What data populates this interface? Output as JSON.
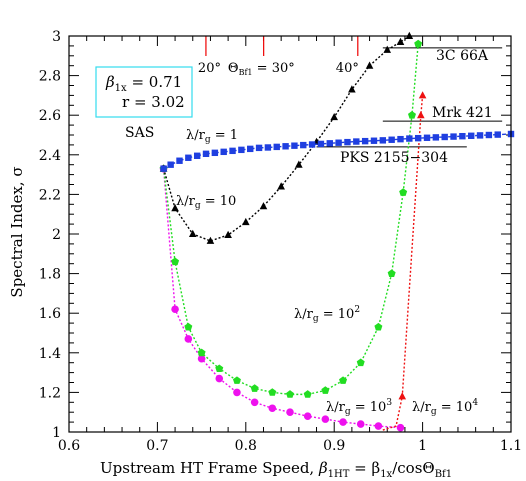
{
  "chart_data": {
    "type": "scatter",
    "xlim": [
      0.6,
      1.1
    ],
    "ylim": [
      1.0,
      3.0
    ],
    "xticks": [
      0.6,
      0.7,
      0.8,
      0.9,
      1.0,
      1.1
    ],
    "xtick_labels": [
      "0.6",
      "0.7",
      "0.8",
      "0.9",
      "1",
      "1.1"
    ],
    "yticks": [
      1.0,
      1.2,
      1.4,
      1.6,
      1.8,
      2.0,
      2.2,
      2.4,
      2.6,
      2.8,
      3.0
    ],
    "ytick_labels": [
      "1",
      "1.2",
      "1.4",
      "1.6",
      "1.8",
      "2",
      "2.2",
      "2.4",
      "2.6",
      "2.8",
      "3"
    ],
    "xlabel_prefix": "Upstream HT Frame Speed, ",
    "xlabel_beta": "β",
    "xlabel_sub1": "1HT",
    "xlabel_mid": " = β",
    "xlabel_sub2": "1x",
    "xlabel_tail": "/cosΘ",
    "xlabel_sub3": "Bf1",
    "ylabel": "Spectral Index, σ",
    "params_box": {
      "beta_line": "β",
      "beta_sub": "1x",
      "beta_val": " = 0.71",
      "r_line": "r = 3.02"
    },
    "sas_label": "SAS",
    "angle_markers": [
      {
        "x": 0.7549,
        "label": "20°"
      },
      {
        "x": 0.8202,
        "label": "30°",
        "prefix": "Θ",
        "sub": "Bf1",
        "eq": " = "
      },
      {
        "x": 0.9267,
        "label": "40°"
      }
    ],
    "sources": [
      {
        "name": "3C 66A",
        "y": 2.94,
        "x_start": 0.955,
        "x_end": 1.09
      },
      {
        "name": "Mrk 421",
        "y": 2.57,
        "x_start": 0.955,
        "x_end": 1.09
      },
      {
        "name": "PKS 2155−304",
        "y": 2.44,
        "x_start": 0.88,
        "x_end": 1.05
      }
    ],
    "series": [
      {
        "name": "λ/r_g = 1",
        "color": "#1f3fe0",
        "marker": "square",
        "label_main": "λ/r",
        "label_sub": "g",
        "label_eq": " = 1",
        "label_sup": "",
        "points": [
          [
            0.707,
            2.33
          ],
          [
            0.715,
            2.35
          ],
          [
            0.725,
            2.37
          ],
          [
            0.735,
            2.385
          ],
          [
            0.745,
            2.395
          ],
          [
            0.755,
            2.405
          ],
          [
            0.765,
            2.41
          ],
          [
            0.775,
            2.415
          ],
          [
            0.785,
            2.42
          ],
          [
            0.795,
            2.425
          ],
          [
            0.805,
            2.43
          ],
          [
            0.815,
            2.435
          ],
          [
            0.825,
            2.437
          ],
          [
            0.835,
            2.44
          ],
          [
            0.845,
            2.443
          ],
          [
            0.855,
            2.446
          ],
          [
            0.865,
            2.449
          ],
          [
            0.875,
            2.452
          ],
          [
            0.885,
            2.455
          ],
          [
            0.895,
            2.458
          ],
          [
            0.905,
            2.461
          ],
          [
            0.915,
            2.464
          ],
          [
            0.925,
            2.467
          ],
          [
            0.935,
            2.469
          ],
          [
            0.945,
            2.471
          ],
          [
            0.955,
            2.473
          ],
          [
            0.965,
            2.476
          ],
          [
            0.975,
            2.479
          ],
          [
            0.985,
            2.482
          ],
          [
            0.995,
            2.484
          ],
          [
            1.005,
            2.486
          ],
          [
            1.015,
            2.488
          ],
          [
            1.025,
            2.49
          ],
          [
            1.035,
            2.492
          ],
          [
            1.045,
            2.494
          ],
          [
            1.055,
            2.496
          ],
          [
            1.065,
            2.498
          ],
          [
            1.075,
            2.5
          ],
          [
            1.085,
            2.502
          ],
          [
            1.1,
            2.505
          ]
        ]
      },
      {
        "name": "λ/r_g = 10",
        "color": "#000000",
        "marker": "triangle",
        "label_main": "λ/r",
        "label_sub": "g",
        "label_eq": " = 10",
        "label_sup": "",
        "points": [
          [
            0.707,
            2.33
          ],
          [
            0.72,
            2.13
          ],
          [
            0.74,
            2.0
          ],
          [
            0.76,
            1.965
          ],
          [
            0.78,
            1.995
          ],
          [
            0.8,
            2.06
          ],
          [
            0.82,
            2.14
          ],
          [
            0.84,
            2.24
          ],
          [
            0.86,
            2.35
          ],
          [
            0.88,
            2.465
          ],
          [
            0.9,
            2.59
          ],
          [
            0.92,
            2.73
          ],
          [
            0.94,
            2.85
          ],
          [
            0.96,
            2.93
          ],
          [
            0.975,
            2.97
          ],
          [
            0.985,
            3.0
          ]
        ]
      },
      {
        "name": "λ/r_g = 10^2",
        "color": "#22dd22",
        "marker": "pentagon",
        "label_main": "λ/r",
        "label_sub": "g",
        "label_eq": " = 10",
        "label_sup": "2",
        "points": [
          [
            0.707,
            2.33
          ],
          [
            0.72,
            1.86
          ],
          [
            0.735,
            1.53
          ],
          [
            0.75,
            1.4
          ],
          [
            0.77,
            1.32
          ],
          [
            0.79,
            1.26
          ],
          [
            0.81,
            1.22
          ],
          [
            0.83,
            1.2
          ],
          [
            0.85,
            1.19
          ],
          [
            0.87,
            1.19
          ],
          [
            0.89,
            1.21
          ],
          [
            0.91,
            1.26
          ],
          [
            0.93,
            1.35
          ],
          [
            0.95,
            1.53
          ],
          [
            0.965,
            1.8
          ],
          [
            0.978,
            2.21
          ],
          [
            0.988,
            2.6
          ],
          [
            0.995,
            2.96
          ]
        ]
      },
      {
        "name": "λ/r_g = 10^3",
        "color": "#ee11ee",
        "marker": "circle",
        "label_main": "λ/r",
        "label_sub": "g",
        "label_eq": " = 10",
        "label_sup": "3",
        "points": [
          [
            0.707,
            2.33
          ],
          [
            0.72,
            1.62
          ],
          [
            0.735,
            1.47
          ],
          [
            0.75,
            1.37
          ],
          [
            0.77,
            1.27
          ],
          [
            0.79,
            1.2
          ],
          [
            0.81,
            1.15
          ],
          [
            0.83,
            1.12
          ],
          [
            0.85,
            1.1
          ],
          [
            0.87,
            1.08
          ],
          [
            0.89,
            1.065
          ],
          [
            0.91,
            1.05
          ],
          [
            0.93,
            1.04
          ],
          [
            0.95,
            1.03
          ],
          [
            0.975,
            1.022
          ]
        ]
      },
      {
        "name": "λ/r_g = 10^4",
        "color": "#ee1111",
        "marker": "triangle",
        "label_main": "λ/r",
        "label_sub": "g",
        "label_eq": " = 10",
        "label_sup": "4",
        "points": [
          [
            0.955,
            1.01
          ],
          [
            0.97,
            1.03
          ],
          [
            0.977,
            1.18
          ],
          [
            0.998,
            2.6
          ],
          [
            1.0,
            2.7
          ]
        ]
      }
    ]
  }
}
